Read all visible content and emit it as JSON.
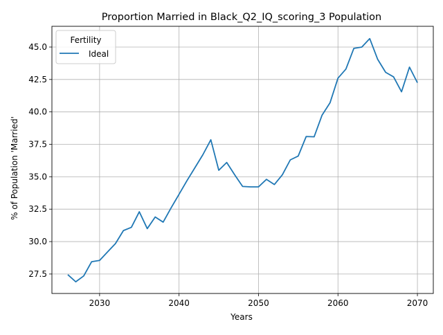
{
  "chart_data": {
    "type": "line",
    "title": "Proportion Married in Black_Q2_IQ_scoring_3 Population",
    "xlabel": "Years",
    "ylabel": "% of Population 'Married'",
    "xlim": [
      2024,
      2072
    ],
    "ylim": [
      26.0,
      46.6
    ],
    "x_ticks": [
      2030,
      2040,
      2050,
      2060,
      2070
    ],
    "x_tick_labels": [
      "2030",
      "2040",
      "2050",
      "2060",
      "2070"
    ],
    "y_ticks": [
      27.5,
      30.0,
      32.5,
      35.0,
      37.5,
      40.0,
      42.5,
      45.0
    ],
    "y_tick_labels": [
      "27.5",
      "30.0",
      "32.5",
      "35.0",
      "37.5",
      "40.0",
      "42.5",
      "45.0"
    ],
    "grid": true,
    "legend": {
      "title": "Fertility",
      "placement": "top-left"
    },
    "series": [
      {
        "name": "Ideal",
        "color": "#1f77b4",
        "x": [
          2026,
          2027,
          2028,
          2029,
          2030,
          2031,
          2032,
          2033,
          2034,
          2035,
          2036,
          2037,
          2038,
          2039,
          2040,
          2041,
          2042,
          2043,
          2044,
          2045,
          2046,
          2047,
          2048,
          2049,
          2050,
          2051,
          2052,
          2053,
          2054,
          2055,
          2056,
          2057,
          2058,
          2059,
          2060,
          2061,
          2062,
          2063,
          2064,
          2065,
          2066,
          2067,
          2068,
          2069,
          2070
        ],
        "values": [
          27.45,
          26.9,
          27.35,
          28.45,
          28.55,
          29.2,
          29.85,
          30.85,
          31.1,
          32.3,
          31.0,
          31.9,
          31.5,
          32.6,
          33.65,
          34.7,
          35.7,
          36.7,
          37.85,
          35.5,
          36.1,
          35.15,
          34.25,
          34.22,
          34.22,
          34.8,
          34.4,
          35.15,
          36.3,
          36.6,
          38.1,
          38.08,
          39.75,
          40.7,
          42.6,
          43.3,
          44.9,
          45.0,
          45.65,
          44.05,
          43.05,
          42.7,
          41.55,
          43.45,
          42.25
        ]
      }
    ]
  }
}
